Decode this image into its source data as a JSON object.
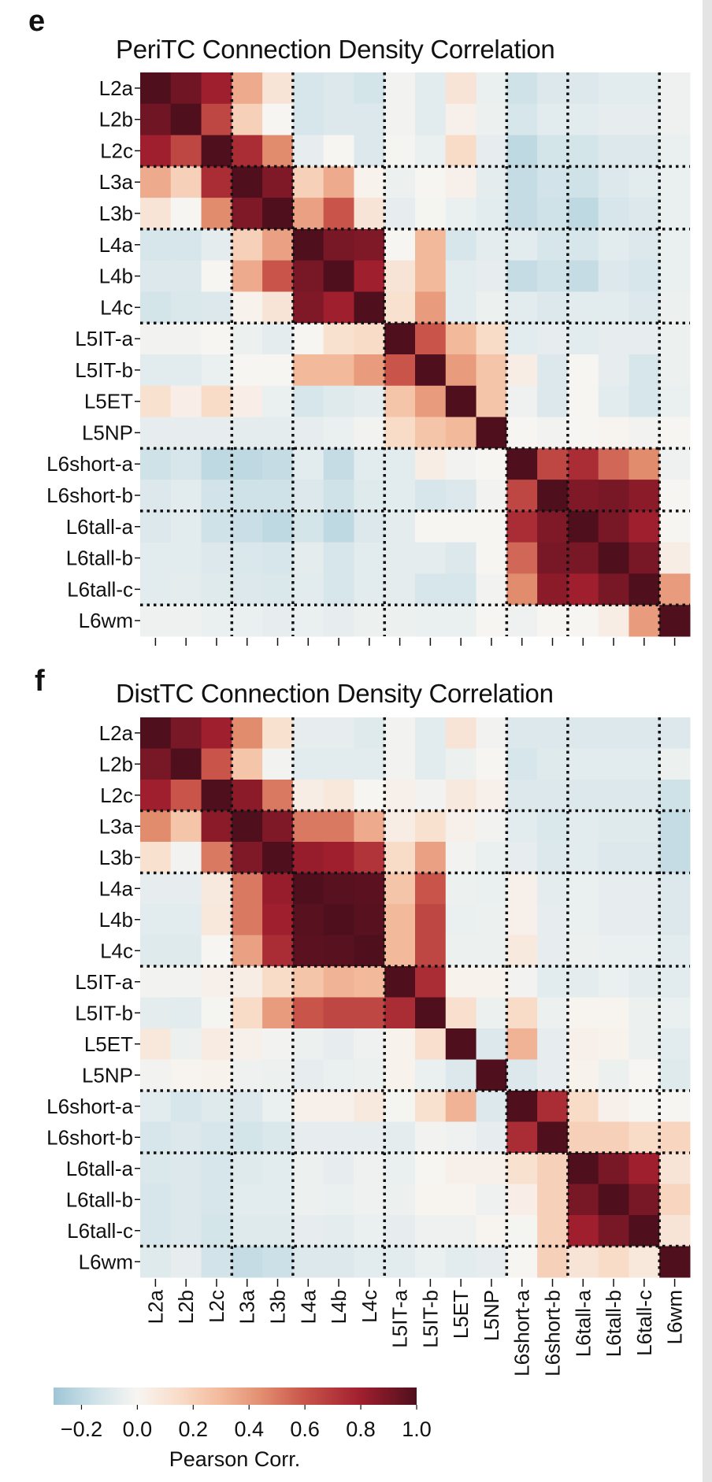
{
  "chart_data": [
    {
      "type": "heatmap",
      "panel": "e",
      "title": "PeriTC Connection Density Correlation",
      "row_labels": [
        "L2a",
        "L2b",
        "L2c",
        "L3a",
        "L3b",
        "L4a",
        "L4b",
        "L4c",
        "L5IT-a",
        "L5IT-b",
        "L5ET",
        "L5NP",
        "L6short-a",
        "L6short-b",
        "L6tall-a",
        "L6tall-b",
        "L6tall-c",
        "L6wm"
      ],
      "col_labels_shown": false,
      "group_boundaries_after_index": [
        2,
        4,
        7,
        11,
        13,
        16
      ],
      "values": [
        [
          1,
          0.92,
          0.8,
          0.35,
          0.1,
          -0.12,
          -0.1,
          -0.13,
          -0.02,
          -0.08,
          0.1,
          -0.05,
          -0.15,
          -0.1,
          -0.1,
          -0.08,
          -0.08,
          -0.03
        ],
        [
          0.92,
          1,
          0.65,
          0.2,
          0,
          -0.12,
          -0.1,
          -0.1,
          -0.02,
          -0.08,
          0.03,
          -0.04,
          -0.12,
          -0.08,
          -0.08,
          -0.06,
          -0.06,
          -0.03
        ],
        [
          0.8,
          0.65,
          1,
          0.75,
          0.45,
          -0.06,
          0,
          -0.1,
          -0.01,
          -0.05,
          0.15,
          -0.06,
          -0.2,
          -0.13,
          -0.13,
          -0.1,
          -0.1,
          -0.05
        ],
        [
          0.35,
          0.2,
          0.75,
          1,
          0.88,
          0.2,
          0.35,
          0.02,
          -0.04,
          0,
          0.03,
          -0.07,
          -0.18,
          -0.14,
          -0.15,
          -0.1,
          -0.08,
          -0.05
        ],
        [
          0.1,
          0,
          0.45,
          0.88,
          1,
          0.38,
          0.6,
          0.1,
          -0.06,
          -0.01,
          -0.05,
          -0.08,
          -0.18,
          -0.15,
          -0.2,
          -0.12,
          -0.1,
          -0.05
        ],
        [
          -0.12,
          -0.12,
          -0.07,
          0.2,
          0.38,
          1,
          0.9,
          0.88,
          0,
          0.3,
          -0.12,
          -0.07,
          -0.08,
          -0.12,
          -0.12,
          -0.08,
          -0.1,
          -0.05
        ],
        [
          -0.1,
          -0.1,
          0,
          0.35,
          0.6,
          0.9,
          1,
          0.8,
          0.1,
          0.3,
          -0.08,
          -0.06,
          -0.18,
          -0.15,
          -0.18,
          -0.1,
          -0.12,
          -0.05
        ],
        [
          -0.13,
          -0.11,
          -0.1,
          0.02,
          0.1,
          0.88,
          0.8,
          1,
          0.12,
          0.4,
          -0.08,
          -0.04,
          -0.08,
          -0.1,
          -0.08,
          -0.08,
          -0.1,
          -0.04
        ],
        [
          -0.02,
          -0.02,
          0,
          -0.04,
          -0.07,
          0,
          0.12,
          0.15,
          1,
          0.6,
          0.3,
          0.15,
          -0.08,
          -0.06,
          -0.08,
          -0.06,
          -0.06,
          -0.04
        ],
        [
          -0.08,
          -0.08,
          -0.05,
          0,
          0,
          0.3,
          0.3,
          0.4,
          0.6,
          1,
          0.4,
          0.25,
          0.05,
          -0.1,
          0,
          -0.06,
          -0.12,
          -0.04
        ],
        [
          0.12,
          0.04,
          0.15,
          0.04,
          -0.05,
          -0.12,
          -0.09,
          -0.07,
          0.25,
          0.4,
          1,
          0.25,
          -0.03,
          -0.1,
          0,
          -0.08,
          -0.12,
          -0.05
        ],
        [
          -0.06,
          -0.06,
          -0.06,
          -0.07,
          -0.07,
          -0.06,
          -0.05,
          -0.02,
          0.15,
          0.25,
          0.3,
          1,
          0,
          -0.02,
          0,
          0.01,
          -0.02,
          0
        ],
        [
          -0.15,
          -0.12,
          -0.2,
          -0.2,
          -0.18,
          -0.08,
          -0.18,
          -0.08,
          -0.08,
          0.05,
          -0.02,
          0,
          1,
          0.65,
          0.75,
          0.55,
          0.45,
          -0.03
        ],
        [
          -0.1,
          -0.08,
          -0.14,
          -0.15,
          -0.15,
          -0.1,
          -0.15,
          -0.09,
          -0.08,
          -0.12,
          -0.1,
          -0.02,
          0.65,
          1,
          0.88,
          0.9,
          0.85,
          0
        ],
        [
          -0.1,
          -0.08,
          -0.15,
          -0.17,
          -0.2,
          -0.13,
          -0.2,
          -0.1,
          -0.07,
          0,
          0,
          0,
          0.75,
          0.88,
          1,
          0.9,
          0.8,
          0
        ],
        [
          -0.08,
          -0.08,
          -0.1,
          -0.11,
          -0.12,
          -0.07,
          -0.12,
          -0.08,
          -0.07,
          -0.07,
          -0.1,
          0,
          0.55,
          0.9,
          0.9,
          1,
          0.9,
          0.05
        ],
        [
          -0.08,
          -0.07,
          -0.09,
          -0.1,
          -0.11,
          -0.08,
          -0.12,
          -0.08,
          -0.07,
          -0.12,
          -0.12,
          -0.02,
          0.45,
          0.85,
          0.8,
          0.9,
          1,
          0.4
        ],
        [
          -0.03,
          -0.03,
          -0.05,
          -0.05,
          -0.06,
          -0.05,
          -0.06,
          -0.04,
          -0.04,
          -0.05,
          -0.05,
          0,
          -0.03,
          0,
          0,
          0.05,
          0.4,
          1
        ]
      ]
    },
    {
      "type": "heatmap",
      "panel": "f",
      "title": "DistTC Connection Density Correlation",
      "row_labels": [
        "L2a",
        "L2b",
        "L2c",
        "L3a",
        "L3b",
        "L4a",
        "L4b",
        "L4c",
        "L5IT-a",
        "L5IT-b",
        "L5ET",
        "L5NP",
        "L6short-a",
        "L6short-b",
        "L6tall-a",
        "L6tall-b",
        "L6tall-c",
        "L6wm"
      ],
      "col_labels": [
        "L2a",
        "L2b",
        "L2c",
        "L3a",
        "L3b",
        "L4a",
        "L4b",
        "L4c",
        "L5IT-a",
        "L5IT-b",
        "L5ET",
        "L5NP",
        "L6short-a",
        "L6short-b",
        "L6tall-a",
        "L6tall-b",
        "L6tall-c",
        "L6wm"
      ],
      "group_boundaries_after_index": [
        2,
        4,
        7,
        11,
        13,
        16
      ],
      "values": [
        [
          1,
          0.9,
          0.8,
          0.45,
          0.12,
          -0.06,
          -0.06,
          -0.09,
          -0.02,
          -0.08,
          0.1,
          -0.02,
          -0.1,
          -0.1,
          -0.1,
          -0.1,
          -0.1,
          -0.1
        ],
        [
          0.9,
          1,
          0.6,
          0.25,
          -0.02,
          -0.08,
          -0.08,
          -0.08,
          -0.02,
          -0.08,
          -0.04,
          0,
          -0.12,
          -0.09,
          -0.08,
          -0.08,
          -0.08,
          -0.04
        ],
        [
          0.8,
          0.6,
          1,
          0.85,
          0.5,
          0.05,
          0.08,
          0,
          0.03,
          -0.02,
          0.07,
          0.03,
          -0.1,
          -0.1,
          -0.1,
          -0.1,
          -0.1,
          -0.15
        ],
        [
          0.45,
          0.25,
          0.85,
          1,
          0.88,
          0.5,
          0.5,
          0.35,
          0.05,
          0.12,
          0.03,
          -0.02,
          -0.08,
          -0.11,
          -0.08,
          -0.09,
          -0.09,
          -0.18
        ],
        [
          0.12,
          -0.02,
          0.5,
          0.88,
          1,
          0.82,
          0.8,
          0.72,
          0.15,
          0.38,
          -0.02,
          -0.05,
          -0.06,
          -0.1,
          -0.08,
          -0.1,
          -0.1,
          -0.18
        ],
        [
          -0.06,
          -0.06,
          0.07,
          0.5,
          0.82,
          1,
          0.98,
          0.97,
          0.25,
          0.6,
          -0.04,
          -0.05,
          0.03,
          -0.07,
          -0.05,
          -0.06,
          -0.06,
          -0.1
        ],
        [
          -0.08,
          -0.08,
          0.08,
          0.5,
          0.8,
          0.98,
          1,
          0.98,
          0.3,
          0.65,
          -0.05,
          -0.04,
          0.03,
          -0.06,
          -0.05,
          -0.06,
          -0.06,
          -0.1
        ],
        [
          -0.09,
          -0.09,
          0,
          0.38,
          0.75,
          0.97,
          0.98,
          1,
          0.3,
          0.65,
          -0.04,
          -0.04,
          0.07,
          -0.06,
          -0.04,
          -0.05,
          -0.05,
          -0.08
        ],
        [
          -0.02,
          -0.02,
          0.03,
          0.05,
          0.15,
          0.25,
          0.32,
          0.3,
          1,
          0.75,
          0.02,
          0.02,
          -0.02,
          -0.08,
          -0.07,
          -0.05,
          -0.07,
          -0.08
        ],
        [
          -0.07,
          -0.08,
          -0.01,
          0.15,
          0.4,
          0.6,
          0.65,
          0.65,
          0.75,
          1,
          0.13,
          -0.04,
          0.15,
          -0.04,
          0.01,
          0.01,
          -0.04,
          -0.05
        ],
        [
          0.08,
          -0.04,
          0.06,
          0.03,
          -0.02,
          -0.04,
          -0.06,
          -0.03,
          0.02,
          0.13,
          1,
          -0.1,
          0.32,
          -0.06,
          0.03,
          0.02,
          -0.04,
          -0.08
        ],
        [
          -0.02,
          0.01,
          0.02,
          -0.03,
          -0.04,
          -0.06,
          -0.05,
          -0.04,
          0.02,
          -0.05,
          -0.1,
          1,
          -0.1,
          -0.06,
          0.02,
          -0.04,
          0,
          -0.09
        ],
        [
          -0.08,
          -0.12,
          -0.09,
          -0.1,
          -0.05,
          0.03,
          0.03,
          0.07,
          -0.01,
          0.12,
          0.32,
          -0.1,
          1,
          0.75,
          0.15,
          0.03,
          0,
          0
        ],
        [
          -0.12,
          -0.1,
          -0.12,
          -0.13,
          -0.11,
          -0.06,
          -0.06,
          -0.06,
          -0.07,
          -0.02,
          -0.03,
          -0.06,
          0.75,
          1,
          0.2,
          0.2,
          0.15,
          0.18
        ],
        [
          -0.11,
          -0.1,
          -0.12,
          -0.09,
          -0.08,
          -0.04,
          -0.06,
          -0.03,
          -0.05,
          0,
          0.03,
          0.03,
          0.12,
          0.2,
          1,
          0.9,
          0.8,
          0.1
        ],
        [
          -0.12,
          -0.1,
          -0.12,
          -0.08,
          -0.08,
          -0.04,
          -0.05,
          -0.03,
          -0.04,
          0.01,
          0.01,
          -0.03,
          0.04,
          0.2,
          0.9,
          1,
          0.9,
          0.18
        ],
        [
          -0.12,
          -0.1,
          -0.13,
          -0.09,
          -0.09,
          -0.06,
          -0.07,
          -0.05,
          -0.06,
          -0.03,
          -0.03,
          0.01,
          -0.01,
          0.2,
          0.8,
          0.9,
          1,
          0.1
        ],
        [
          -0.09,
          -0.06,
          -0.14,
          -0.18,
          -0.16,
          -0.1,
          -0.1,
          -0.08,
          -0.08,
          -0.05,
          -0.08,
          -0.06,
          0,
          0.2,
          0.1,
          0.15,
          0.08,
          1
        ]
      ]
    }
  ],
  "panels": {
    "e_letter": "e",
    "f_letter": "f"
  },
  "colorbar": {
    "label": "Pearson Corr.",
    "range": [
      -0.3,
      1.0
    ],
    "ticks": [
      "−0.2",
      "0.0",
      "0.2",
      "0.4",
      "0.6",
      "0.8",
      "1.0"
    ],
    "tick_values": [
      -0.2,
      0,
      0.2,
      0.4,
      0.6,
      0.8,
      1.0
    ],
    "colormap": [
      [
        -0.3,
        "#9fc6d6"
      ],
      [
        -0.15,
        "#cfe2e8"
      ],
      [
        0,
        "#f7f5f2"
      ],
      [
        0.15,
        "#f9dcc8"
      ],
      [
        0.3,
        "#f3b99b"
      ],
      [
        0.45,
        "#e28c6e"
      ],
      [
        0.6,
        "#c8544a"
      ],
      [
        0.8,
        "#a01f2e"
      ],
      [
        1.0,
        "#4f0f1d"
      ]
    ]
  }
}
